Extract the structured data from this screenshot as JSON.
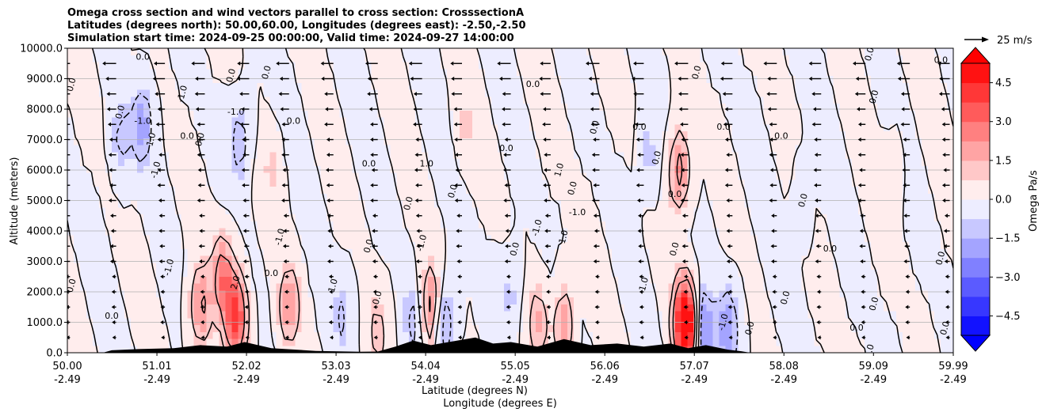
{
  "chart_data": {
    "type": "heatmap",
    "title_lines": [
      "Omega cross section and wind vectors parallel to cross section: CrosssectionA",
      "Latitudes (degrees north): 50.00,60.00, Longitudes (degrees east): -2.50,-2.50",
      "Simulation start time: 2024-09-25 00:00:00, Valid time: 2024-09-27 14:00:00"
    ],
    "xlabel": "Latitude (degrees N)",
    "xlabel2": "Longitude (degrees E)",
    "ylabel": "Altitude (meters)",
    "xlim": [
      50.0,
      59.99
    ],
    "ylim": [
      0,
      10000
    ],
    "x_ticks": [
      {
        "lat": 50.0,
        "lat_label": "50.00",
        "lon_label": "-2.49"
      },
      {
        "lat": 51.01,
        "lat_label": "51.01",
        "lon_label": "-2.49"
      },
      {
        "lat": 52.02,
        "lat_label": "52.02",
        "lon_label": "-2.49"
      },
      {
        "lat": 53.03,
        "lat_label": "53.03",
        "lon_label": "-2.49"
      },
      {
        "lat": 54.04,
        "lat_label": "54.04",
        "lon_label": "-2.49"
      },
      {
        "lat": 55.05,
        "lat_label": "55.05",
        "lon_label": "-2.49"
      },
      {
        "lat": 56.06,
        "lat_label": "56.06",
        "lon_label": "-2.49"
      },
      {
        "lat": 57.07,
        "lat_label": "57.07",
        "lon_label": "-2.49"
      },
      {
        "lat": 58.08,
        "lat_label": "58.08",
        "lon_label": "-2.49"
      },
      {
        "lat": 59.09,
        "lat_label": "59.09",
        "lon_label": "-2.49"
      },
      {
        "lat": 59.99,
        "lat_label": "59.99",
        "lon_label": "-2.49"
      }
    ],
    "y_ticks": [
      {
        "value": 0,
        "label": "0.0"
      },
      {
        "value": 1000,
        "label": "1000.0"
      },
      {
        "value": 2000,
        "label": "2000.0"
      },
      {
        "value": 3000,
        "label": "3000.0"
      },
      {
        "value": 4000,
        "label": "4000.0"
      },
      {
        "value": 5000,
        "label": "5000.0"
      },
      {
        "value": 6000,
        "label": "6000.0"
      },
      {
        "value": 7000,
        "label": "7000.0"
      },
      {
        "value": 8000,
        "label": "8000.0"
      },
      {
        "value": 9000,
        "label": "9000.0"
      },
      {
        "value": 10000,
        "label": "10000.0"
      }
    ],
    "grid": "horizontal",
    "colorbar": {
      "label": "Omega Pa/s",
      "range": [
        -5.25,
        5.25
      ],
      "extend": "both",
      "ticks": [
        {
          "value": 4.5,
          "label": "4.5"
        },
        {
          "value": 3.0,
          "label": "3.0"
        },
        {
          "value": 1.5,
          "label": "1.5"
        },
        {
          "value": 0.0,
          "label": "0.0"
        },
        {
          "value": -1.5,
          "label": "−1.5"
        },
        {
          "value": -3.0,
          "label": "−3.0"
        },
        {
          "value": -4.5,
          "label": "−4.5"
        }
      ]
    },
    "quiver_key": {
      "label": "25 m/s",
      "speed": 25
    },
    "contour_levels": [
      -1.0,
      0.0,
      1.0,
      2.0
    ],
    "omega_field": {
      "background": 0.15,
      "features": [
        {
          "lat": 50.6,
          "alt": 7000,
          "value": -1.2
        },
        {
          "lat": 50.85,
          "alt": 7500,
          "value": -1.8
        },
        {
          "lat": 51.5,
          "alt": 1500,
          "value": 2.2
        },
        {
          "lat": 51.75,
          "alt": 2500,
          "value": 2.5
        },
        {
          "lat": 51.9,
          "alt": 1200,
          "value": 4.0
        },
        {
          "lat": 51.95,
          "alt": 7000,
          "value": -1.5
        },
        {
          "lat": 52.3,
          "alt": 6000,
          "value": 0.8
        },
        {
          "lat": 52.5,
          "alt": 1500,
          "value": 2.0
        },
        {
          "lat": 53.1,
          "alt": 1200,
          "value": -1.0
        },
        {
          "lat": 53.5,
          "alt": 600,
          "value": 1.2
        },
        {
          "lat": 53.9,
          "alt": 1000,
          "value": -1.2
        },
        {
          "lat": 54.1,
          "alt": 1500,
          "value": 2.5
        },
        {
          "lat": 54.25,
          "alt": 1000,
          "value": -2.0
        },
        {
          "lat": 54.5,
          "alt": 7500,
          "value": 0.8
        },
        {
          "lat": 55.0,
          "alt": 2000,
          "value": -1.0
        },
        {
          "lat": 55.3,
          "alt": 1000,
          "value": 1.5
        },
        {
          "lat": 55.6,
          "alt": 900,
          "value": 2.0
        },
        {
          "lat": 56.55,
          "alt": 6500,
          "value": -1.0
        },
        {
          "lat": 56.9,
          "alt": 6000,
          "value": 2.5
        },
        {
          "lat": 56.95,
          "alt": 1000,
          "value": 4.5
        },
        {
          "lat": 57.05,
          "alt": 800,
          "value": 3.0
        },
        {
          "lat": 57.15,
          "alt": 700,
          "value": -3.5
        },
        {
          "lat": 57.45,
          "alt": 800,
          "value": -2.0
        },
        {
          "lat": 58.3,
          "alt": 5000,
          "value": -0.6
        },
        {
          "lat": 59.3,
          "alt": 6000,
          "value": 0.4
        }
      ]
    },
    "contour_labels": [
      {
        "text": "0.0",
        "lat": 50.85,
        "alt": 9700
      },
      {
        "text": "0.0",
        "lat": 50.05,
        "alt": 8800
      },
      {
        "text": "0.0",
        "lat": 50.6,
        "alt": 7900
      },
      {
        "text": "-1.0",
        "lat": 50.85,
        "alt": 7600
      },
      {
        "text": "1.0",
        "lat": 50.95,
        "alt": 7000
      },
      {
        "text": "-1.0",
        "lat": 51.0,
        "alt": 6000
      },
      {
        "text": "0.0",
        "lat": 51.35,
        "alt": 7100
      },
      {
        "text": "-1.0",
        "lat": 51.3,
        "alt": 8500
      },
      {
        "text": "0.0",
        "lat": 51.5,
        "alt": 7000
      },
      {
        "text": "-1.0",
        "lat": 51.9,
        "alt": 7900
      },
      {
        "text": "0.0",
        "lat": 51.85,
        "alt": 9100
      },
      {
        "text": "0.0",
        "lat": 52.25,
        "alt": 9200
      },
      {
        "text": "0.0",
        "lat": 52.55,
        "alt": 7600
      },
      {
        "text": "-1.0",
        "lat": 52.4,
        "alt": 3800
      },
      {
        "text": "0.0",
        "lat": 50.05,
        "alt": 2200
      },
      {
        "text": "0.0",
        "lat": 50.5,
        "alt": 1200
      },
      {
        "text": "2.0",
        "lat": 51.9,
        "alt": 2300
      },
      {
        "text": "-1.0",
        "lat": 51.15,
        "alt": 2800
      },
      {
        "text": "0.0",
        "lat": 52.3,
        "alt": 2600
      },
      {
        "text": "1.0",
        "lat": 53.0,
        "alt": 2200
      },
      {
        "text": "0.0",
        "lat": 53.4,
        "alt": 3500
      },
      {
        "text": "0.0",
        "lat": 53.4,
        "alt": 6200
      },
      {
        "text": "0.0",
        "lat": 53.5,
        "alt": 1800
      },
      {
        "text": "0.0",
        "lat": 53.85,
        "alt": 4900
      },
      {
        "text": "1.0",
        "lat": 54.05,
        "alt": 6200
      },
      {
        "text": "0.0",
        "lat": 54.35,
        "alt": 5300
      },
      {
        "text": "-1.0",
        "lat": 54.0,
        "alt": 3600
      },
      {
        "text": "0.0",
        "lat": 54.95,
        "alt": 6700
      },
      {
        "text": "-1.0",
        "lat": 55.3,
        "alt": 4100
      },
      {
        "text": "0.0",
        "lat": 55.05,
        "alt": 3400
      },
      {
        "text": "0.0",
        "lat": 55.25,
        "alt": 8800
      },
      {
        "text": "0.0",
        "lat": 55.7,
        "alt": 5400
      },
      {
        "text": "1.0",
        "lat": 55.55,
        "alt": 6000
      },
      {
        "text": "-1.0",
        "lat": 55.75,
        "alt": 4600
      },
      {
        "text": "1.0",
        "lat": 55.6,
        "alt": 3800
      },
      {
        "text": "0.0",
        "lat": 55.95,
        "alt": 7400
      },
      {
        "text": "0.0",
        "lat": 56.45,
        "alt": 7400
      },
      {
        "text": "-1.0",
        "lat": 56.5,
        "alt": 2200
      },
      {
        "text": "0.0",
        "lat": 56.65,
        "alt": 6400
      },
      {
        "text": "0.0",
        "lat": 56.85,
        "alt": 5200
      },
      {
        "text": "0.0",
        "lat": 56.85,
        "alt": 3400
      },
      {
        "text": "0.0",
        "lat": 57.1,
        "alt": 9200
      },
      {
        "text": "0.0",
        "lat": 57.4,
        "alt": 7400
      },
      {
        "text": "-1.0",
        "lat": 57.4,
        "alt": 1000
      },
      {
        "text": "0.0",
        "lat": 57.7,
        "alt": 800
      },
      {
        "text": "0.0",
        "lat": 58.05,
        "alt": 7100
      },
      {
        "text": "0.0",
        "lat": 58.3,
        "alt": 5000
      },
      {
        "text": "0.0",
        "lat": 58.1,
        "alt": 1800
      },
      {
        "text": "0.0",
        "lat": 58.6,
        "alt": 3400
      },
      {
        "text": "0.0",
        "lat": 59.05,
        "alt": 9800
      },
      {
        "text": "0.0",
        "lat": 59.1,
        "alt": 8400
      },
      {
        "text": "0.0",
        "lat": 58.9,
        "alt": 800
      },
      {
        "text": "0.0",
        "lat": 59.1,
        "alt": 1600
      },
      {
        "text": "0.0",
        "lat": 59.05,
        "alt": 50
      },
      {
        "text": "0.0",
        "lat": 59.85,
        "alt": 9600
      },
      {
        "text": "0.0",
        "lat": 59.85,
        "alt": 3100
      },
      {
        "text": "0.0",
        "lat": 59.9,
        "alt": 800
      }
    ],
    "wind_vectors": {
      "columns_lat": [
        50.03,
        50.55,
        51.1,
        51.55,
        52.05,
        52.5,
        53.0,
        53.5,
        54.0,
        54.45,
        55.0,
        55.45,
        56.0,
        56.5,
        57.0,
        57.5,
        58.0,
        58.5,
        59.0,
        59.5,
        59.95
      ],
      "rows_alt": [
        9500,
        9000,
        8500,
        8000,
        7500,
        7000,
        6500,
        6000,
        5500,
        5000,
        4500,
        4000,
        3500,
        3000,
        2500,
        2000,
        1500,
        1000,
        500
      ],
      "speed_scale": [
        -7,
        -6,
        -5,
        -4,
        -4,
        -3,
        -3,
        -3,
        -3,
        -3,
        -2,
        -2,
        -2,
        -2,
        -1,
        -1,
        -1,
        -1,
        -0.5
      ]
    },
    "terrain": [
      {
        "lat": 50.0,
        "alt": 0
      },
      {
        "lat": 50.4,
        "alt": 0
      },
      {
        "lat": 50.5,
        "alt": 80
      },
      {
        "lat": 50.8,
        "alt": 120
      },
      {
        "lat": 51.2,
        "alt": 150
      },
      {
        "lat": 51.5,
        "alt": 250
      },
      {
        "lat": 51.8,
        "alt": 200
      },
      {
        "lat": 52.0,
        "alt": 350
      },
      {
        "lat": 52.3,
        "alt": 150
      },
      {
        "lat": 52.8,
        "alt": 60
      },
      {
        "lat": 53.3,
        "alt": 30
      },
      {
        "lat": 53.5,
        "alt": 40
      },
      {
        "lat": 53.7,
        "alt": 200
      },
      {
        "lat": 53.9,
        "alt": 400
      },
      {
        "lat": 54.1,
        "alt": 250
      },
      {
        "lat": 54.3,
        "alt": 350
      },
      {
        "lat": 54.6,
        "alt": 500
      },
      {
        "lat": 54.8,
        "alt": 300
      },
      {
        "lat": 55.0,
        "alt": 350
      },
      {
        "lat": 55.3,
        "alt": 200
      },
      {
        "lat": 55.6,
        "alt": 450
      },
      {
        "lat": 55.9,
        "alt": 250
      },
      {
        "lat": 56.2,
        "alt": 300
      },
      {
        "lat": 56.5,
        "alt": 200
      },
      {
        "lat": 56.8,
        "alt": 300
      },
      {
        "lat": 57.0,
        "alt": 150
      },
      {
        "lat": 57.2,
        "alt": 250
      },
      {
        "lat": 57.45,
        "alt": 100
      },
      {
        "lat": 57.6,
        "alt": 50
      },
      {
        "lat": 57.7,
        "alt": 0
      },
      {
        "lat": 59.99,
        "alt": 0
      }
    ]
  }
}
